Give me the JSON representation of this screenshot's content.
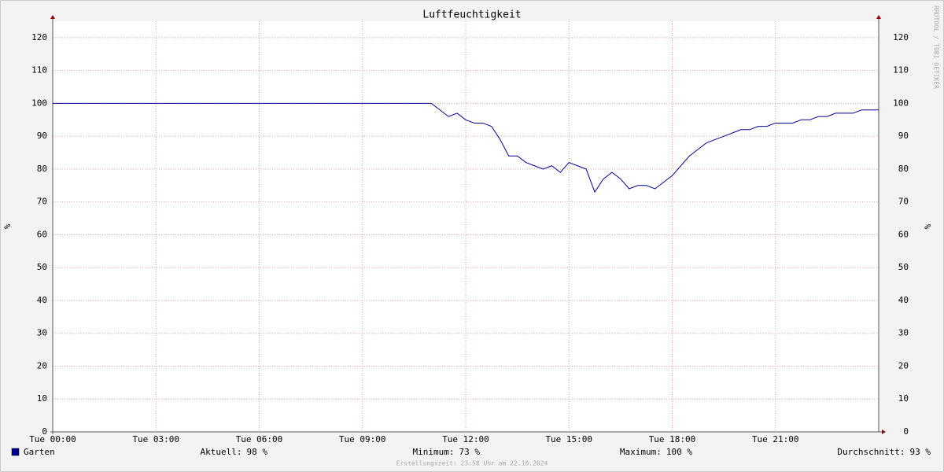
{
  "chart_data": {
    "type": "line",
    "title": "Luftfeuchtigkeit",
    "y_label": "%",
    "watermark": "RRDTOOL / TOBI OETIKER",
    "x": [
      0,
      11,
      11.25,
      11.5,
      11.75,
      12,
      12.25,
      12.5,
      12.75,
      13,
      13.25,
      13.5,
      13.75,
      14,
      14.25,
      14.5,
      14.75,
      15,
      15.25,
      15.5,
      15.75,
      16,
      16.25,
      16.5,
      16.75,
      17,
      17.25,
      17.5,
      17.75,
      18,
      18.25,
      18.5,
      18.75,
      19,
      19.25,
      19.5,
      19.75,
      20,
      20.25,
      20.5,
      20.75,
      21,
      21.25,
      21.5,
      21.75,
      22,
      22.25,
      22.5,
      22.75,
      23,
      23.25,
      23.5,
      23.75,
      24
    ],
    "series": [
      {
        "name": "Garten",
        "color": "#000099",
        "values": [
          100,
          100,
          98,
          96,
          97,
          95,
          94,
          94,
          93,
          89,
          84,
          84,
          82,
          81,
          80,
          81,
          79,
          82,
          81,
          80,
          73,
          77,
          79,
          77,
          74,
          75,
          75,
          74,
          76,
          78,
          81,
          84,
          86,
          88,
          89,
          90,
          91,
          92,
          92,
          93,
          93,
          94,
          94,
          94,
          95,
          95,
          96,
          96,
          97,
          97,
          97,
          98,
          98,
          98
        ]
      }
    ],
    "xlim": [
      0,
      24
    ],
    "xticks": [
      {
        "value": 0,
        "label": "Tue 00:00"
      },
      {
        "value": 3,
        "label": "Tue 03:00"
      },
      {
        "value": 6,
        "label": "Tue 06:00"
      },
      {
        "value": 9,
        "label": "Tue 09:00"
      },
      {
        "value": 12,
        "label": "Tue 12:00"
      },
      {
        "value": 15,
        "label": "Tue 15:00"
      },
      {
        "value": 18,
        "label": "Tue 18:00"
      },
      {
        "value": 21,
        "label": "Tue 21:00"
      }
    ],
    "ylim": [
      0,
      125
    ],
    "yticks": [
      0,
      10,
      20,
      30,
      40,
      50,
      60,
      70,
      80,
      90,
      100,
      110,
      120
    ],
    "grid": true,
    "stats": [
      {
        "label": "Aktuell:",
        "value": "98 %"
      },
      {
        "label": "Minimum:",
        "value": "73 %"
      },
      {
        "label": "Maximum:",
        "value": "100 %"
      },
      {
        "label": "Durchschnitt:",
        "value": "93 %"
      }
    ],
    "footer": "Erstellungszeit: 23:58 Uhr am 22.10.2024"
  }
}
